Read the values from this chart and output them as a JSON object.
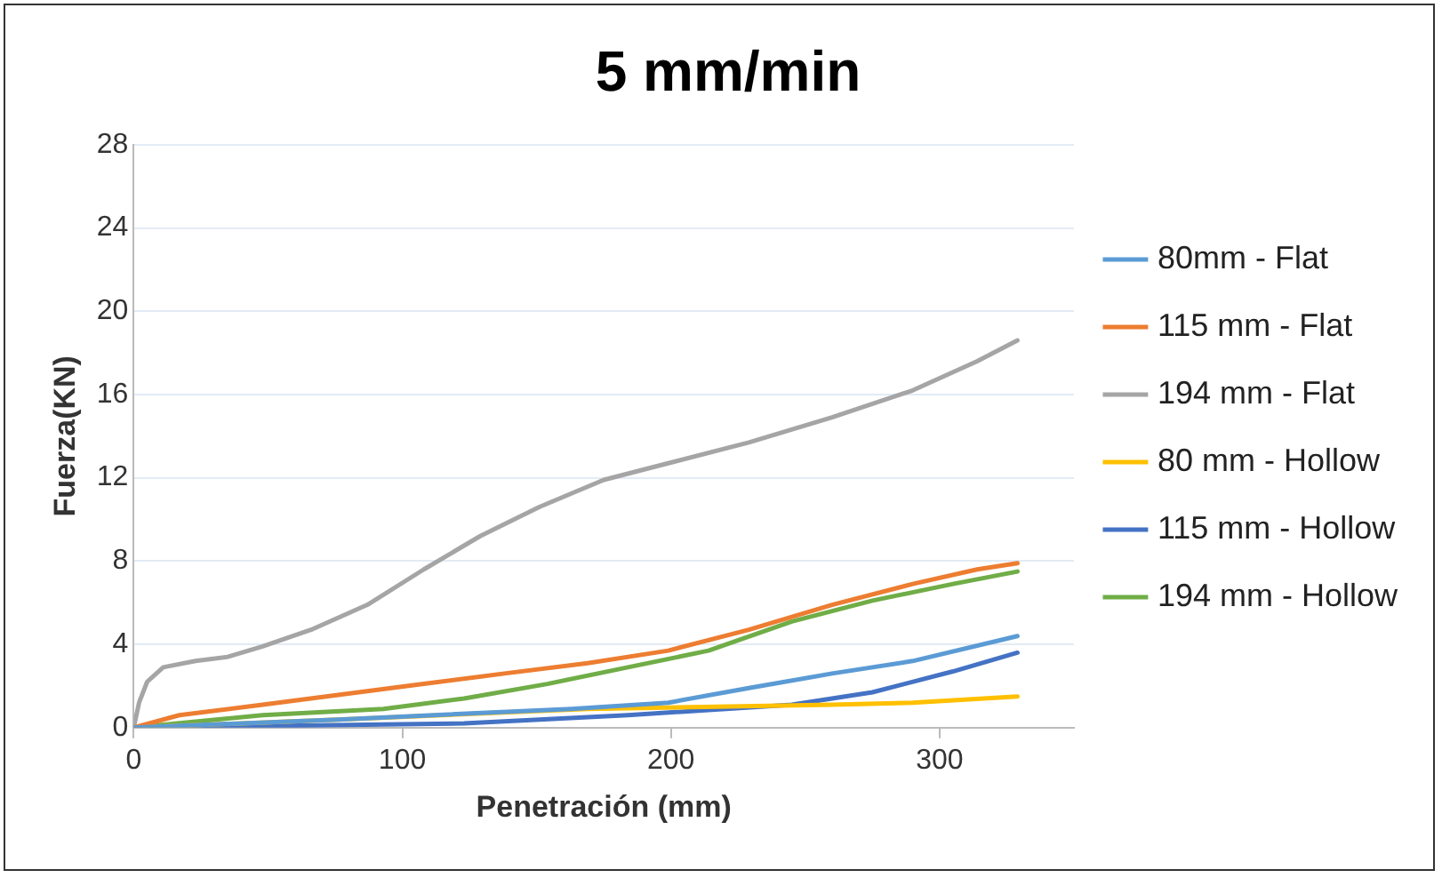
{
  "chart_data": {
    "type": "line",
    "title": "5 mm/min",
    "xlabel": "Penetración (mm)",
    "ylabel": "Fuerza(KN)",
    "xlim": [
      0,
      350
    ],
    "xticks": [
      0,
      100,
      200,
      300
    ],
    "ylim": [
      0,
      28
    ],
    "yticks": [
      0,
      4,
      8,
      12,
      16,
      20,
      24,
      28
    ],
    "grid": "y",
    "legend": "right",
    "marker": "none",
    "line_style": "solid",
    "series": [
      {
        "name": "80mm - Flat",
        "color": "#5b9bd5",
        "x": [
          0,
          78,
          163,
          199,
          229,
          260,
          290,
          329
        ],
        "values": [
          0,
          0.4,
          0.9,
          1.2,
          1.9,
          2.6,
          3.2,
          4.4
        ]
      },
      {
        "name": "115 mm - Flat",
        "color": "#ed7d31",
        "x": [
          0,
          17,
          48,
          78,
          108,
          138,
          169,
          199,
          229,
          260,
          290,
          314,
          329
        ],
        "values": [
          0,
          0.6,
          1.1,
          1.6,
          2.1,
          2.6,
          3.1,
          3.7,
          4.7,
          5.9,
          6.9,
          7.6,
          7.9
        ]
      },
      {
        "name": "194 mm - Flat",
        "color": "#a5a5a5",
        "x": [
          0,
          2,
          5,
          11,
          23,
          35,
          48,
          66,
          87,
          108,
          129,
          151,
          175,
          199,
          229,
          260,
          290,
          314,
          329
        ],
        "values": [
          0,
          1.2,
          2.2,
          2.9,
          3.2,
          3.4,
          3.9,
          4.7,
          5.9,
          7.6,
          9.2,
          10.6,
          11.9,
          12.7,
          13.7,
          14.9,
          16.2,
          17.6,
          18.6
        ]
      },
      {
        "name": "80 mm - Hollow",
        "color": "#ffc000",
        "x": [
          0,
          78,
          169,
          260,
          290,
          329
        ],
        "values": [
          0,
          0.4,
          0.9,
          1.1,
          1.2,
          1.5
        ]
      },
      {
        "name": "115 mm - Hollow",
        "color": "#4472c4",
        "x": [
          0,
          123,
          184,
          245,
          275,
          305,
          329
        ],
        "values": [
          0,
          0.2,
          0.6,
          1.1,
          1.7,
          2.7,
          3.6
        ]
      },
      {
        "name": "194 mm - Hollow",
        "color": "#70ad47",
        "x": [
          0,
          48,
          93,
          123,
          154,
          184,
          214,
          245,
          275,
          305,
          329
        ],
        "values": [
          0,
          0.6,
          0.9,
          1.4,
          2.1,
          2.9,
          3.7,
          5.1,
          6.1,
          6.9,
          7.5
        ]
      }
    ]
  }
}
